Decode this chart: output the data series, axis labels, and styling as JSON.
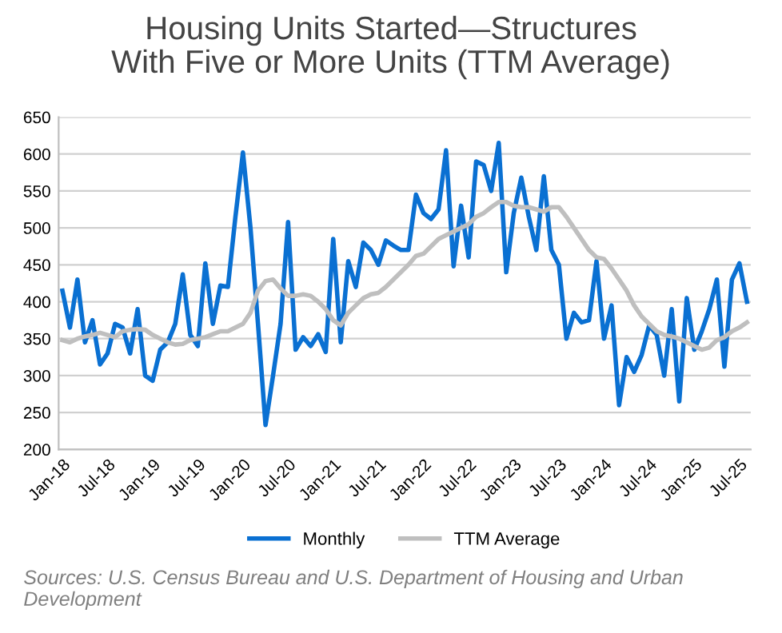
{
  "chart_data": {
    "type": "line",
    "title": "Housing Units Started—Structures\nWith Five or More Units (TTM Average)",
    "categories": [
      "Jan-18",
      null,
      null,
      null,
      null,
      null,
      "Jul-18",
      null,
      null,
      null,
      null,
      null,
      "Jan-19",
      null,
      null,
      null,
      null,
      null,
      "Jul-19",
      null,
      null,
      null,
      null,
      null,
      "Jan-20",
      null,
      null,
      null,
      null,
      null,
      "Jul-20",
      null,
      null,
      null,
      null,
      null,
      "Jan-21",
      null,
      null,
      null,
      null,
      null,
      "Jul-21",
      null,
      null,
      null,
      null,
      null,
      "Jan-22",
      null,
      null,
      null,
      null,
      null,
      "Jul-22",
      null,
      null,
      null,
      null,
      null,
      "Jan-23",
      null,
      null,
      null,
      null,
      null,
      "Jul-23",
      null,
      null,
      null,
      null,
      null,
      "Jan-24",
      null,
      null,
      null,
      null,
      null,
      "Jul-24",
      null,
      null,
      null,
      null,
      null,
      "Jan-25",
      null,
      null,
      null,
      null,
      null,
      "Jul-25",
      null
    ],
    "series": [
      {
        "name": "Monthly",
        "color": "#0a70d2",
        "values": [
          415,
          365,
          430,
          345,
          375,
          315,
          330,
          370,
          365,
          330,
          390,
          300,
          293,
          335,
          345,
          370,
          437,
          355,
          340,
          452,
          370,
          422,
          420,
          515,
          602,
          500,
          370,
          233,
          300,
          370,
          508,
          335,
          352,
          340,
          356,
          332,
          485,
          345,
          455,
          420,
          480,
          470,
          450,
          483,
          476,
          470,
          470,
          545,
          520,
          512,
          525,
          605,
          448,
          530,
          460,
          590,
          585,
          550,
          615,
          440,
          520,
          568,
          515,
          470,
          570,
          470,
          450,
          350,
          385,
          372,
          375,
          455,
          350,
          395,
          260,
          325,
          305,
          328,
          368,
          355,
          300,
          390,
          265,
          405,
          335,
          360,
          390,
          430,
          312,
          430,
          452,
          400
        ]
      },
      {
        "name": "TTM Average",
        "color": "#bfbfbf",
        "values": [
          348,
          345,
          350,
          353,
          355,
          358,
          355,
          352,
          360,
          362,
          363,
          362,
          355,
          350,
          345,
          342,
          343,
          348,
          350,
          352,
          356,
          360,
          360,
          365,
          370,
          385,
          415,
          428,
          430,
          418,
          408,
          408,
          410,
          408,
          400,
          390,
          375,
          368,
          385,
          395,
          405,
          410,
          412,
          420,
          430,
          440,
          450,
          462,
          465,
          475,
          485,
          490,
          495,
          500,
          505,
          515,
          520,
          528,
          535,
          535,
          530,
          528,
          528,
          525,
          522,
          528,
          528,
          515,
          500,
          485,
          470,
          460,
          458,
          445,
          430,
          415,
          395,
          380,
          370,
          360,
          355,
          353,
          350,
          345,
          340,
          335,
          338,
          348,
          352,
          360,
          365,
          372
        ]
      }
    ],
    "ylim": [
      200,
      650
    ],
    "yticks": [
      200,
      250,
      300,
      350,
      400,
      450,
      500,
      550,
      600,
      650
    ],
    "grid": "y",
    "legend": "bottom",
    "marker": "none",
    "line_style": "solid",
    "annotations": [
      "Sources: U.S. Census Bureau and U.S. Department of Housing and Urban Development"
    ]
  }
}
